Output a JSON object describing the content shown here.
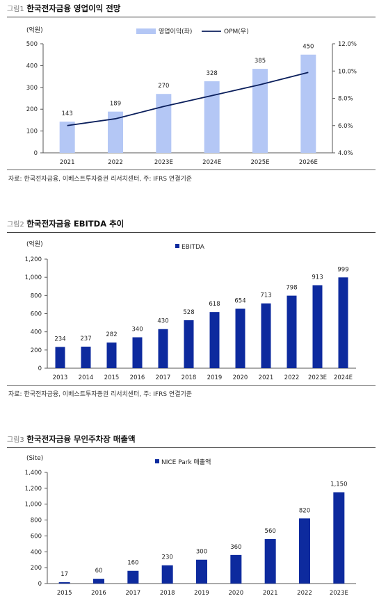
{
  "chart_data": [
    {
      "type": "bar+line",
      "fig_label": "그림1",
      "title": "한국전자금융 영업이익 전망",
      "unit_left": "(억원)",
      "categories": [
        "2021",
        "2022",
        "2023E",
        "2024E",
        "2025E",
        "2026E"
      ],
      "series": [
        {
          "name": "영업이익(좌)",
          "type": "bar",
          "axis": "left",
          "values": [
            143,
            189,
            270,
            328,
            385,
            450
          ],
          "color": "#b4c7f5"
        },
        {
          "name": "OPM(우)",
          "type": "line",
          "axis": "right",
          "values": [
            6.0,
            6.5,
            7.4,
            8.2,
            9.0,
            9.9
          ],
          "color": "#0b1f5c"
        }
      ],
      "ylim": [
        0,
        500
      ],
      "yticks": [
        "0",
        "100",
        "200",
        "300",
        "400",
        "500"
      ],
      "y2lim": [
        4.0,
        12.0
      ],
      "y2ticks": [
        "4.0%",
        "6.0%",
        "8.0%",
        "10.0%",
        "12.0%"
      ],
      "legend": "top-center",
      "source": "자료: 한국전자금융, 이베스트투자증권 리서치센터, 주: IFRS 연결기준"
    },
    {
      "type": "bar",
      "fig_label": "그림2",
      "title": "한국전자금융 EBITDA 추이",
      "unit_left": "(억원)",
      "categories": [
        "2013",
        "2014",
        "2015",
        "2016",
        "2017",
        "2018",
        "2019",
        "2020",
        "2021",
        "2022",
        "2023E",
        "2024E"
      ],
      "series": [
        {
          "name": "EBITDA",
          "values": [
            234,
            237,
            282,
            340,
            430,
            528,
            618,
            654,
            713,
            798,
            913,
            999
          ],
          "color": "#0d2a9e"
        }
      ],
      "ylim": [
        0,
        1200
      ],
      "yticks": [
        "0",
        "200",
        "400",
        "600",
        "800",
        "1,000",
        "1,200"
      ],
      "legend": "top-center",
      "source": "자료: 한국전자금융, 이베스트투자증권 리서치센터, 주: IFRS 연결기준"
    },
    {
      "type": "bar",
      "fig_label": "그림3",
      "title": "한국전자금융 무인주차장 매출액",
      "unit_left": "(Site)",
      "categories": [
        "2015",
        "2016",
        "2017",
        "2018",
        "2019",
        "2020",
        "2021",
        "2022",
        "2023E"
      ],
      "series": [
        {
          "name": "NICE Park 매출액",
          "values": [
            17,
            60,
            160,
            230,
            300,
            360,
            560,
            820,
            1150
          ],
          "labels": [
            "17",
            "60",
            "160",
            "230",
            "300",
            "360",
            "560",
            "820",
            "1,150"
          ],
          "color": "#0d2a9e"
        }
      ],
      "ylim": [
        0,
        1400
      ],
      "yticks": [
        "0",
        "200",
        "400",
        "600",
        "800",
        "1,000",
        "1,200",
        "1,400"
      ],
      "legend": "top-center"
    }
  ]
}
